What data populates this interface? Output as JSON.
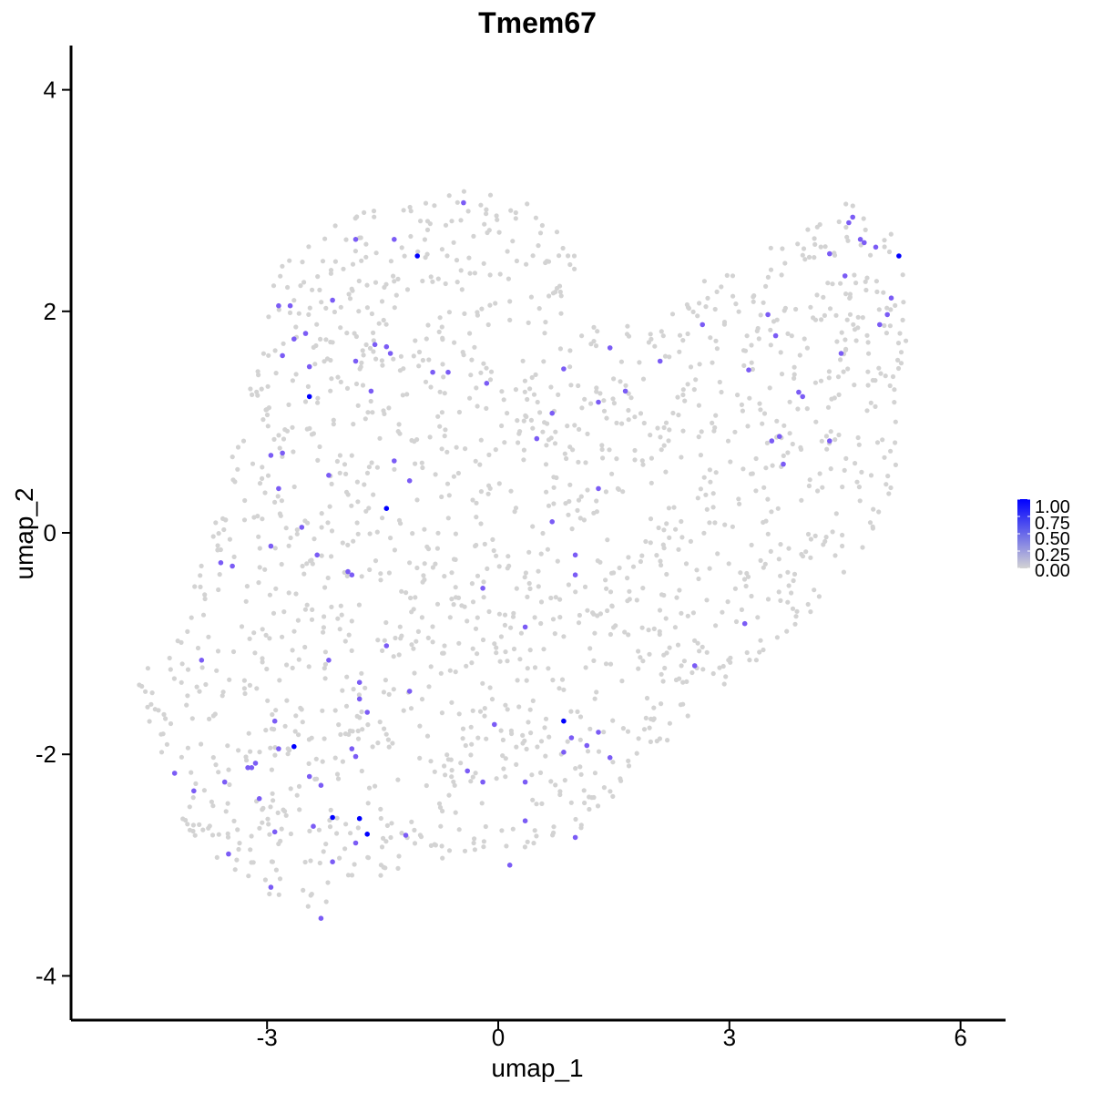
{
  "chart_data": {
    "type": "scatter",
    "title": "Tmem67",
    "xlabel": "umap_1",
    "ylabel": "umap_2",
    "xlim": [
      -6,
      6.6
    ],
    "ylim": [
      -4.35,
      4.4
    ],
    "x_ticks": [
      -3,
      0,
      3,
      6
    ],
    "y_ticks": [
      -4,
      -2,
      0,
      2,
      4
    ],
    "x_tick_labels": [
      "-3",
      "0",
      "3",
      "6"
    ],
    "y_tick_labels": [
      "-4",
      "-2",
      "0",
      "2",
      "4"
    ],
    "grid": false,
    "legend": {
      "placement": "right",
      "type": "colorbar",
      "breaks": [
        "1.00",
        "0.75",
        "0.50",
        "0.25",
        "0.00"
      ],
      "range": [
        0,
        1
      ]
    },
    "colors": {
      "low": "#d3d3d3",
      "high": "#0000ff"
    },
    "cluster_outline": [
      [
        -4.7,
        -1.3
      ],
      [
        -4.4,
        -2.1
      ],
      [
        -4.0,
        -2.8
      ],
      [
        -3.4,
        -3.1
      ],
      [
        -2.8,
        -3.35
      ],
      [
        -2.3,
        -3.5
      ],
      [
        -1.9,
        -3.3
      ],
      [
        -1.4,
        -3.1
      ],
      [
        -0.5,
        -2.95
      ],
      [
        0.4,
        -2.85
      ],
      [
        1.2,
        -2.65
      ],
      [
        1.8,
        -2.2
      ],
      [
        2.6,
        -1.6
      ],
      [
        3.4,
        -1.2
      ],
      [
        4.1,
        -0.7
      ],
      [
        4.8,
        -0.1
      ],
      [
        5.2,
        0.5
      ],
      [
        5.35,
        1.2
      ],
      [
        5.4,
        2.0
      ],
      [
        5.25,
        2.6
      ],
      [
        4.6,
        3.05
      ],
      [
        3.8,
        2.65
      ],
      [
        3.0,
        2.5
      ],
      [
        2.2,
        2.0
      ],
      [
        1.3,
        1.8
      ],
      [
        1.0,
        2.5
      ],
      [
        0.6,
        2.9
      ],
      [
        0.0,
        3.15
      ],
      [
        -1.0,
        3.05
      ],
      [
        -2.1,
        2.85
      ],
      [
        -2.9,
        2.4
      ],
      [
        -3.2,
        1.4
      ],
      [
        -3.45,
        0.7
      ],
      [
        -3.75,
        0.0
      ],
      [
        -4.0,
        -0.6
      ],
      [
        -4.3,
        -1.0
      ]
    ],
    "highlighted_points": [
      {
        "x": -0.45,
        "y": 2.98,
        "v": 0.6
      },
      {
        "x": -1.35,
        "y": 2.65,
        "v": 0.6
      },
      {
        "x": -1.85,
        "y": 2.65,
        "v": 0.6
      },
      {
        "x": -1.05,
        "y": 2.5,
        "v": 1.0
      },
      {
        "x": -2.15,
        "y": 2.1,
        "v": 0.6
      },
      {
        "x": -2.85,
        "y": 2.05,
        "v": 0.6
      },
      {
        "x": -2.7,
        "y": 2.05,
        "v": 0.6
      },
      {
        "x": -2.5,
        "y": 1.8,
        "v": 0.6
      },
      {
        "x": -2.65,
        "y": 1.75,
        "v": 0.6
      },
      {
        "x": -2.8,
        "y": 1.6,
        "v": 0.6
      },
      {
        "x": -1.6,
        "y": 1.7,
        "v": 0.6
      },
      {
        "x": -1.45,
        "y": 1.68,
        "v": 0.6
      },
      {
        "x": -1.4,
        "y": 1.62,
        "v": 0.6
      },
      {
        "x": -1.85,
        "y": 1.55,
        "v": 0.6
      },
      {
        "x": -2.45,
        "y": 1.5,
        "v": 0.6
      },
      {
        "x": -0.85,
        "y": 1.45,
        "v": 0.6
      },
      {
        "x": -0.65,
        "y": 1.45,
        "v": 0.6
      },
      {
        "x": -0.15,
        "y": 1.35,
        "v": 0.6
      },
      {
        "x": -1.65,
        "y": 1.28,
        "v": 0.6
      },
      {
        "x": -2.45,
        "y": 1.23,
        "v": 1.0
      },
      {
        "x": -2.95,
        "y": 0.7,
        "v": 0.6
      },
      {
        "x": -2.8,
        "y": 0.72,
        "v": 0.6
      },
      {
        "x": -1.35,
        "y": 0.65,
        "v": 0.6
      },
      {
        "x": -2.2,
        "y": 0.52,
        "v": 0.6
      },
      {
        "x": -1.15,
        "y": 0.47,
        "v": 0.6
      },
      {
        "x": -2.85,
        "y": 0.4,
        "v": 0.6
      },
      {
        "x": -1.45,
        "y": 0.22,
        "v": 1.0
      },
      {
        "x": -2.55,
        "y": 0.05,
        "v": 0.6
      },
      {
        "x": -2.95,
        "y": -0.12,
        "v": 0.6
      },
      {
        "x": -2.35,
        "y": -0.2,
        "v": 0.6
      },
      {
        "x": -3.6,
        "y": -0.27,
        "v": 0.6
      },
      {
        "x": -3.45,
        "y": -0.3,
        "v": 0.6
      },
      {
        "x": -1.95,
        "y": -0.35,
        "v": 0.6
      },
      {
        "x": -1.9,
        "y": -0.38,
        "v": 0.6
      },
      {
        "x": -0.2,
        "y": -0.5,
        "v": 0.6
      },
      {
        "x": -1.45,
        "y": -1.02,
        "v": 0.6
      },
      {
        "x": -3.85,
        "y": -1.15,
        "v": 0.6
      },
      {
        "x": -2.2,
        "y": -1.15,
        "v": 0.6
      },
      {
        "x": -1.8,
        "y": -1.35,
        "v": 0.6
      },
      {
        "x": -1.15,
        "y": -1.43,
        "v": 0.6
      },
      {
        "x": -1.8,
        "y": -1.5,
        "v": 0.6
      },
      {
        "x": -1.7,
        "y": -1.62,
        "v": 0.6
      },
      {
        "x": -2.9,
        "y": -1.7,
        "v": 0.6
      },
      {
        "x": -2.65,
        "y": -1.93,
        "v": 1.0
      },
      {
        "x": -2.85,
        "y": -1.95,
        "v": 0.6
      },
      {
        "x": -1.9,
        "y": -1.95,
        "v": 0.6
      },
      {
        "x": -1.85,
        "y": -2.02,
        "v": 0.6
      },
      {
        "x": -3.15,
        "y": -2.08,
        "v": 0.6
      },
      {
        "x": -3.25,
        "y": -2.12,
        "v": 0.6
      },
      {
        "x": -3.2,
        "y": -2.12,
        "v": 0.6
      },
      {
        "x": -4.2,
        "y": -2.17,
        "v": 0.6
      },
      {
        "x": -2.45,
        "y": -2.2,
        "v": 0.6
      },
      {
        "x": -3.55,
        "y": -2.25,
        "v": 0.6
      },
      {
        "x": -2.3,
        "y": -2.28,
        "v": 0.6
      },
      {
        "x": -3.1,
        "y": -2.4,
        "v": 0.6
      },
      {
        "x": -3.95,
        "y": -2.33,
        "v": 0.6
      },
      {
        "x": -2.15,
        "y": -2.57,
        "v": 1.0
      },
      {
        "x": -1.8,
        "y": -2.58,
        "v": 1.0
      },
      {
        "x": -2.4,
        "y": -2.65,
        "v": 0.6
      },
      {
        "x": -2.9,
        "y": -2.7,
        "v": 0.6
      },
      {
        "x": -1.7,
        "y": -2.72,
        "v": 1.0
      },
      {
        "x": -1.2,
        "y": -2.73,
        "v": 0.6
      },
      {
        "x": -1.85,
        "y": -2.8,
        "v": 0.6
      },
      {
        "x": -3.5,
        "y": -2.9,
        "v": 0.6
      },
      {
        "x": -2.15,
        "y": -2.97,
        "v": 0.6
      },
      {
        "x": -2.95,
        "y": -3.2,
        "v": 0.6
      },
      {
        "x": -2.3,
        "y": -3.48,
        "v": 0.6
      },
      {
        "x": 0.85,
        "y": -1.7,
        "v": 1.0
      },
      {
        "x": -0.05,
        "y": -1.73,
        "v": 0.6
      },
      {
        "x": 1.3,
        "y": -1.8,
        "v": 0.6
      },
      {
        "x": 0.95,
        "y": -1.85,
        "v": 0.6
      },
      {
        "x": 1.15,
        "y": -1.92,
        "v": 0.6
      },
      {
        "x": 0.85,
        "y": -1.98,
        "v": 0.6
      },
      {
        "x": 1.45,
        "y": -2.03,
        "v": 0.6
      },
      {
        "x": -0.4,
        "y": -2.15,
        "v": 0.6
      },
      {
        "x": -0.2,
        "y": -2.25,
        "v": 0.6
      },
      {
        "x": 0.35,
        "y": -2.25,
        "v": 0.6
      },
      {
        "x": 0.35,
        "y": -2.6,
        "v": 0.6
      },
      {
        "x": 1.0,
        "y": -2.75,
        "v": 0.6
      },
      {
        "x": 0.15,
        "y": -3.0,
        "v": 0.6
      },
      {
        "x": 0.35,
        "y": -0.85,
        "v": 0.6
      },
      {
        "x": 1.0,
        "y": -0.2,
        "v": 0.6
      },
      {
        "x": 1.0,
        "y": -0.38,
        "v": 0.6
      },
      {
        "x": 0.7,
        "y": 0.1,
        "v": 0.6
      },
      {
        "x": 1.3,
        "y": 0.4,
        "v": 0.6
      },
      {
        "x": 0.5,
        "y": 0.85,
        "v": 0.6
      },
      {
        "x": 0.7,
        "y": 1.08,
        "v": 0.6
      },
      {
        "x": 1.3,
        "y": 1.18,
        "v": 0.6
      },
      {
        "x": 0.85,
        "y": 1.48,
        "v": 0.6
      },
      {
        "x": 1.65,
        "y": 1.28,
        "v": 0.6
      },
      {
        "x": 1.45,
        "y": 1.67,
        "v": 0.6
      },
      {
        "x": 2.1,
        "y": 1.55,
        "v": 0.6
      },
      {
        "x": 2.65,
        "y": 1.88,
        "v": 0.6
      },
      {
        "x": 2.55,
        "y": -1.2,
        "v": 0.6
      },
      {
        "x": 3.2,
        "y": -0.82,
        "v": 0.6
      },
      {
        "x": 3.25,
        "y": 1.47,
        "v": 0.6
      },
      {
        "x": 3.5,
        "y": 1.97,
        "v": 0.6
      },
      {
        "x": 3.6,
        "y": 1.78,
        "v": 0.6
      },
      {
        "x": 3.95,
        "y": 1.23,
        "v": 0.6
      },
      {
        "x": 3.9,
        "y": 1.27,
        "v": 0.6
      },
      {
        "x": 3.55,
        "y": 0.83,
        "v": 0.6
      },
      {
        "x": 3.65,
        "y": 0.87,
        "v": 0.6
      },
      {
        "x": 3.7,
        "y": 0.62,
        "v": 0.6
      },
      {
        "x": 4.3,
        "y": 0.83,
        "v": 0.6
      },
      {
        "x": 4.45,
        "y": 1.62,
        "v": 0.6
      },
      {
        "x": 4.5,
        "y": 2.32,
        "v": 0.6
      },
      {
        "x": 4.3,
        "y": 2.52,
        "v": 0.6
      },
      {
        "x": 4.55,
        "y": 2.8,
        "v": 0.6
      },
      {
        "x": 4.6,
        "y": 2.85,
        "v": 0.6
      },
      {
        "x": 4.7,
        "y": 2.65,
        "v": 0.6
      },
      {
        "x": 4.75,
        "y": 2.62,
        "v": 0.6
      },
      {
        "x": 4.9,
        "y": 2.58,
        "v": 0.6
      },
      {
        "x": 5.2,
        "y": 2.5,
        "v": 1.0
      },
      {
        "x": 5.05,
        "y": 1.97,
        "v": 0.6
      },
      {
        "x": 4.95,
        "y": 1.88,
        "v": 0.6
      },
      {
        "x": 5.1,
        "y": 2.12,
        "v": 0.6
      }
    ]
  }
}
